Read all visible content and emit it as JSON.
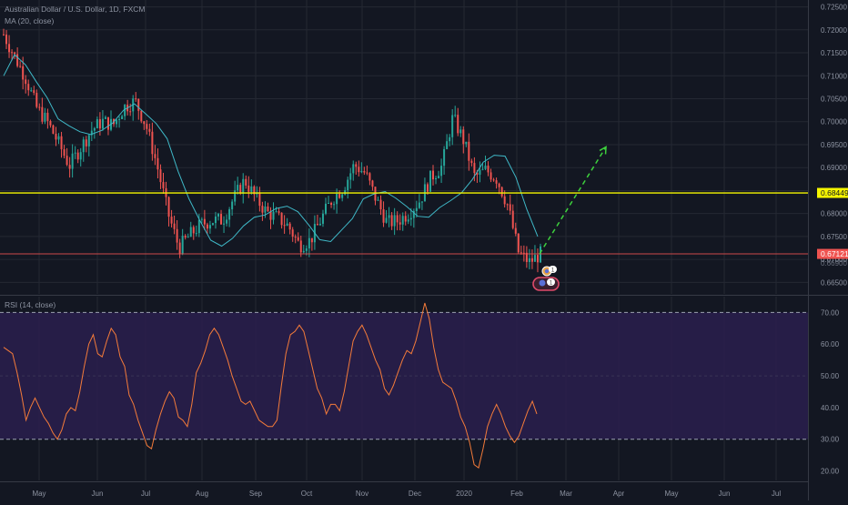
{
  "header": {
    "title": "Australian Dollar / U.S. Dollar, 1D, FXCM",
    "ma_label": "MA (20, close)",
    "rsi_label": "RSI (14, close)"
  },
  "colors": {
    "background": "#131722",
    "grid": "#242833",
    "up_candle": "#26a69a",
    "down_candle": "#ef5350",
    "ma_line": "#3fb8c7",
    "rsi_line": "#f47b3a",
    "rsi_band": "#2a1f4d",
    "support_line": "#f5f500",
    "price_line": "#ef5350",
    "projection": "#3dd13d"
  },
  "chart_data": [
    {
      "type": "candlestick",
      "name": "price",
      "y_axis_ticks": [
        "0.72500",
        "0.72000",
        "0.71500",
        "0.71000",
        "0.70500",
        "0.70000",
        "0.69500",
        "0.69000",
        "0.68500",
        "0.68000",
        "0.67500",
        "0.67000",
        "0.66500"
      ],
      "x_axis_ticks": [
        "May",
        "Jun",
        "Jul",
        "Aug",
        "Sep",
        "Oct",
        "Nov",
        "Dec",
        "2020",
        "Feb",
        "Mar",
        "Apr",
        "May",
        "Jun",
        "Jul"
      ],
      "ylim": [
        0.6625,
        0.7265
      ],
      "indicator_values": [
        0.71,
        0.7146,
        0.7124,
        0.7087,
        0.7052,
        0.7006,
        0.6991,
        0.6978,
        0.6972,
        0.6981,
        0.6997,
        0.7025,
        0.7039,
        0.7018,
        0.6996,
        0.6963,
        0.6892,
        0.6832,
        0.6785,
        0.6742,
        0.6729,
        0.6746,
        0.6773,
        0.6792,
        0.6797,
        0.6811,
        0.6816,
        0.6804,
        0.6775,
        0.6743,
        0.6739,
        0.6764,
        0.6789,
        0.6832,
        0.6843,
        0.6848,
        0.6833,
        0.6815,
        0.6794,
        0.6792,
        0.6813,
        0.6828,
        0.6845,
        0.6874,
        0.6912,
        0.6927,
        0.6925,
        0.6879,
        0.6809,
        0.675
      ],
      "candle_closes": [
        0.719,
        0.7142,
        0.7096,
        0.7031,
        0.6999,
        0.6954,
        0.6904,
        0.6942,
        0.6981,
        0.7001,
        0.6993,
        0.7032,
        0.7045,
        0.6992,
        0.6905,
        0.6801,
        0.6726,
        0.6753,
        0.6776,
        0.6785,
        0.6786,
        0.6833,
        0.6873,
        0.6834,
        0.6803,
        0.6791,
        0.6772,
        0.6731,
        0.6742,
        0.6789,
        0.6832,
        0.6856,
        0.6906,
        0.6888,
        0.6831,
        0.678,
        0.6784,
        0.6802,
        0.6829,
        0.6879,
        0.6903,
        0.701,
        0.6958,
        0.6879,
        0.6895,
        0.6876,
        0.6819,
        0.6715,
        0.6694,
        0.6712
      ],
      "support_level": 0.68449,
      "last_price": 0.67121,
      "support_label": "0.68449",
      "last_price_label": "0.67121",
      "projection_target": 0.6945,
      "sub_label": "0.66900",
      "events": [
        {
          "label": "1"
        },
        {
          "label": "1"
        }
      ]
    },
    {
      "type": "line",
      "name": "rsi",
      "y_axis_ticks": [
        "70.00",
        "60.00",
        "50.00",
        "40.00",
        "30.00",
        "20.00"
      ],
      "ylim": [
        17,
        75
      ],
      "band": [
        30,
        70
      ],
      "values": [
        59,
        58,
        57,
        51,
        44,
        36,
        40,
        43,
        40,
        37,
        35,
        32,
        30,
        33,
        38,
        40,
        39,
        45,
        53,
        60,
        63,
        57,
        56,
        61,
        65,
        63,
        56,
        53,
        44,
        41,
        36,
        32,
        28,
        27,
        33,
        38,
        42,
        45,
        43,
        37,
        36,
        34,
        41,
        51,
        54,
        58,
        63,
        65,
        63,
        59,
        55,
        50,
        46,
        42,
        41,
        42,
        39,
        36,
        35,
        34,
        34,
        36,
        47,
        57,
        63,
        64,
        66,
        64,
        58,
        52,
        46,
        43,
        38,
        41,
        41,
        39,
        45,
        53,
        61,
        64,
        66,
        63,
        59,
        55,
        52,
        46,
        44,
        47,
        51,
        55,
        58,
        57,
        61,
        67,
        73,
        68,
        59,
        52,
        48,
        47,
        46,
        42,
        37,
        34,
        29,
        22,
        21,
        27,
        34,
        38,
        41,
        38,
        34,
        31,
        29,
        31,
        35,
        39,
        42,
        38
      ]
    }
  ]
}
